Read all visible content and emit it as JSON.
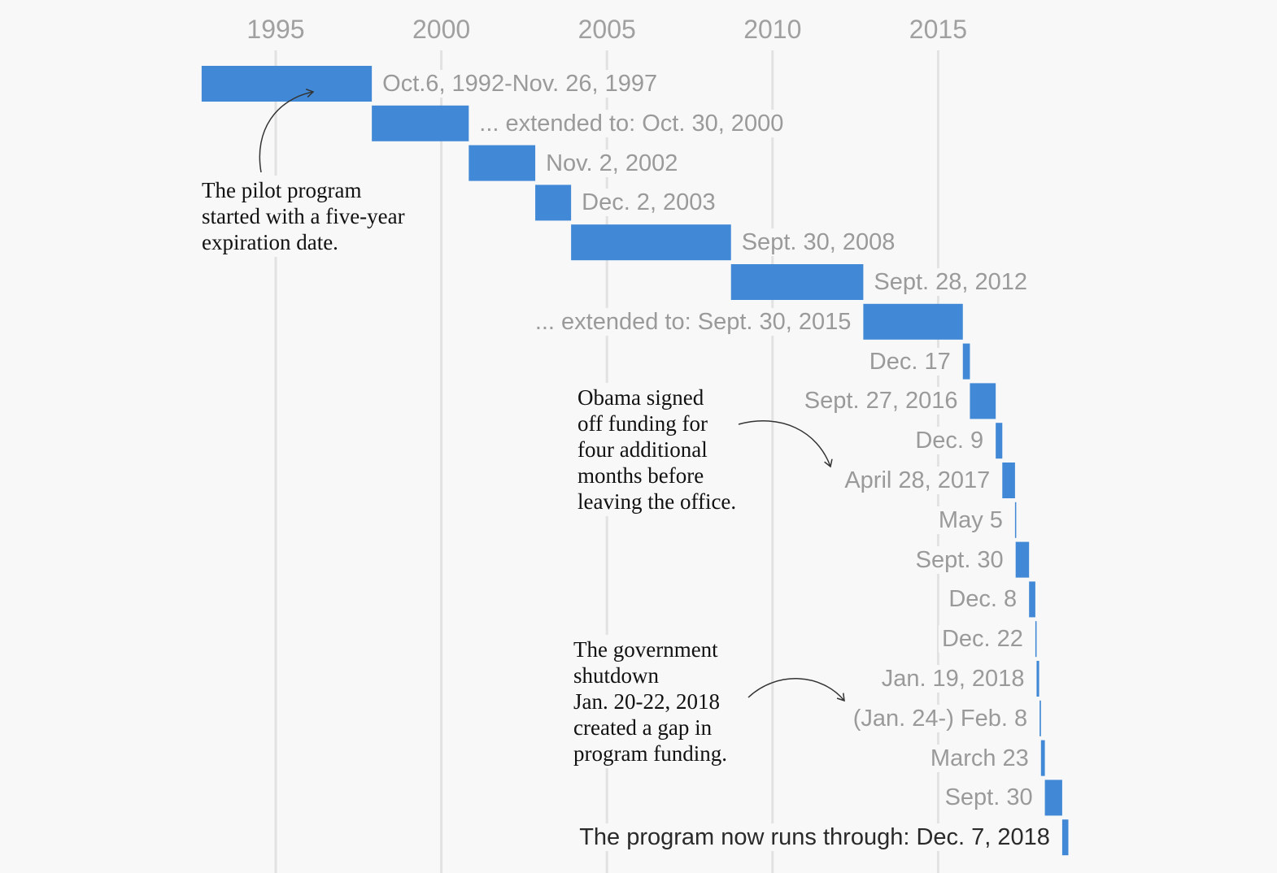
{
  "chart_data": {
    "type": "bar",
    "orientation": "horizontal-timeline",
    "title": "",
    "xlabel": "",
    "ylabel": "",
    "xlim": [
      "1992-10-01",
      "2019-05-01"
    ],
    "x_ticks": [
      "1995",
      "2000",
      "2005",
      "2010",
      "2015"
    ],
    "grid": true,
    "bar_color": "#4189d6",
    "bars": [
      {
        "start": "1992-10-06",
        "end": "1997-11-26",
        "label": "Oct.6, 1992-Nov. 26, 1997",
        "label_side": "right"
      },
      {
        "start": "1997-11-26",
        "end": "2000-10-30",
        "label": "... extended to: Oct. 30, 2000",
        "label_side": "right"
      },
      {
        "start": "2000-10-30",
        "end": "2002-11-02",
        "label": "Nov. 2, 2002",
        "label_side": "right"
      },
      {
        "start": "2002-11-02",
        "end": "2003-12-02",
        "label": "Dec. 2, 2003",
        "label_side": "right"
      },
      {
        "start": "2003-12-02",
        "end": "2008-09-30",
        "label": "Sept. 30, 2008",
        "label_side": "right"
      },
      {
        "start": "2008-09-30",
        "end": "2012-09-28",
        "label": "Sept. 28, 2012",
        "label_side": "right"
      },
      {
        "start": "2012-09-28",
        "end": "2015-09-30",
        "label": "... extended to: Sept. 30, 2015",
        "label_side": "left"
      },
      {
        "start": "2015-09-30",
        "end": "2015-12-17",
        "label": "Dec. 17",
        "label_side": "left"
      },
      {
        "start": "2015-12-17",
        "end": "2016-09-27",
        "label": "Sept. 27, 2016",
        "label_side": "left"
      },
      {
        "start": "2016-09-27",
        "end": "2016-12-09",
        "label": "Dec. 9",
        "label_side": "left"
      },
      {
        "start": "2016-12-09",
        "end": "2017-04-28",
        "label": "April 28, 2017",
        "label_side": "left"
      },
      {
        "start": "2017-04-28",
        "end": "2017-05-05",
        "label": "May 5",
        "label_side": "left"
      },
      {
        "start": "2017-05-05",
        "end": "2017-09-30",
        "label": "Sept. 30",
        "label_side": "left"
      },
      {
        "start": "2017-09-30",
        "end": "2017-12-08",
        "label": "Dec. 8",
        "label_side": "left"
      },
      {
        "start": "2017-12-08",
        "end": "2017-12-22",
        "label": "Dec. 22",
        "label_side": "left"
      },
      {
        "start": "2017-12-22",
        "end": "2018-01-19",
        "label": "Jan. 19, 2018",
        "label_side": "left"
      },
      {
        "start": "2018-01-24",
        "end": "2018-02-08",
        "label": "(Jan. 24-) Feb. 8",
        "label_side": "left"
      },
      {
        "start": "2018-02-08",
        "end": "2018-03-23",
        "label": "March 23",
        "label_side": "left"
      },
      {
        "start": "2018-03-23",
        "end": "2018-09-30",
        "label": "Sept. 30",
        "label_side": "left"
      },
      {
        "start": "2018-09-30",
        "end": "2018-12-07",
        "label": "The program now runs through: Dec. 7, 2018",
        "label_side": "left",
        "emphasis": true
      }
    ],
    "annotations": [
      {
        "text": "The pilot program started with a five-year expiration date.",
        "lines": [
          "The pilot program",
          "started with a five-year",
          "expiration date."
        ]
      },
      {
        "text": "Obama signed off funding for four additional months before leaving the office.",
        "lines": [
          "Obama signed",
          "off funding for",
          "four additional",
          "months before",
          "leaving the office."
        ]
      },
      {
        "text": "The government shutdown Jan. 20-22, 2018 created a gap in program funding.",
        "lines": [
          "The government",
          "shutdown",
          "Jan. 20-22, 2018",
          "created a gap in",
          "program funding."
        ]
      }
    ]
  }
}
